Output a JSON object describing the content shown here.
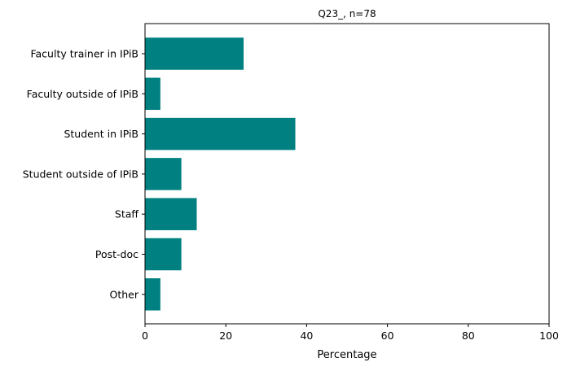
{
  "chart_data": {
    "type": "bar",
    "orientation": "horizontal",
    "title": "Q23_, n=78",
    "xlabel": "Percentage",
    "ylabel": "",
    "categories": [
      "Faculty trainer in IPiB",
      "Faculty outside of IPiB",
      "Student in IPiB",
      "Student outside of IPiB",
      "Staff",
      "Post-doc",
      "Other"
    ],
    "values": [
      24.4,
      3.8,
      37.2,
      9.0,
      12.8,
      9.0,
      3.8
    ],
    "xlim": [
      0,
      100
    ],
    "xticks": [
      0,
      20,
      40,
      60,
      80,
      100
    ],
    "grid": false,
    "legend": "none",
    "bar_color": "#008080"
  }
}
